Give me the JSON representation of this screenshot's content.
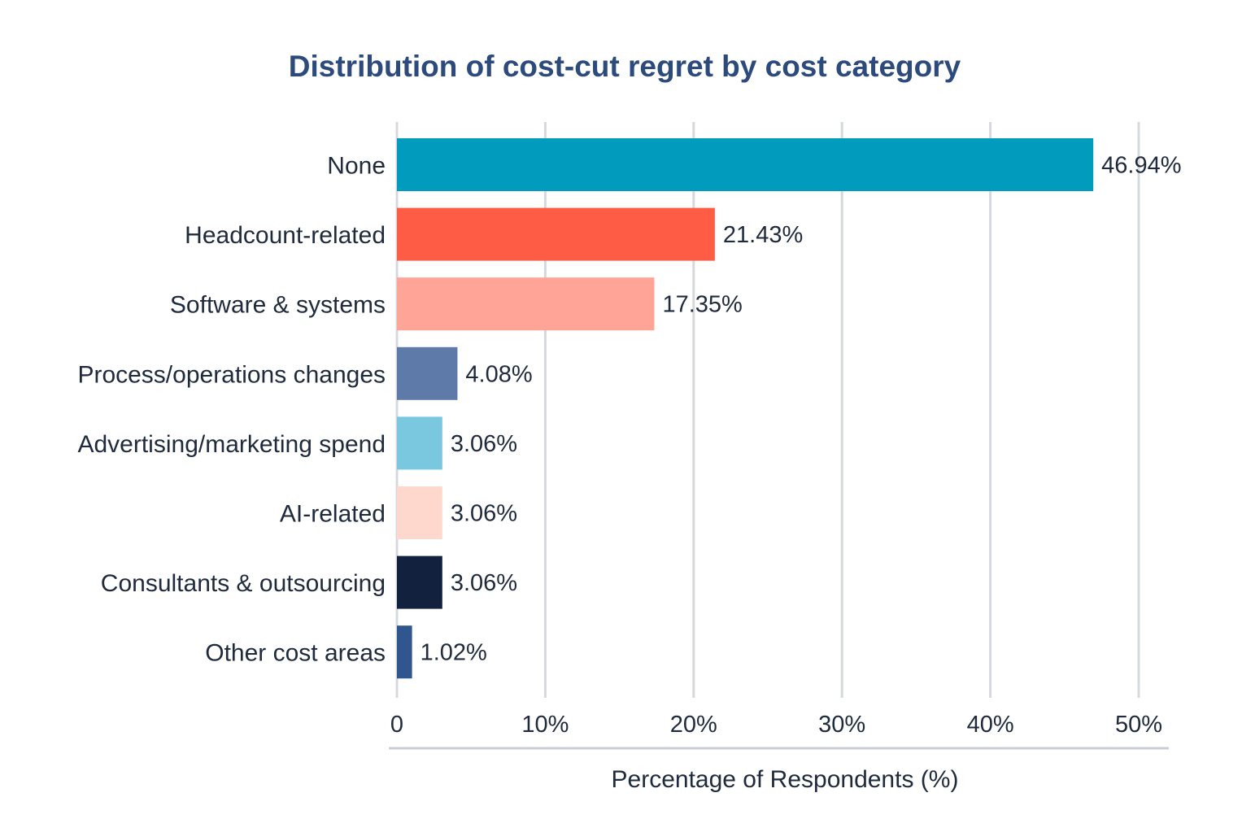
{
  "chart_data": {
    "type": "bar",
    "orientation": "horizontal",
    "title": "Distribution of cost-cut regret by cost category",
    "xlabel": "Percentage of Respondents (%)",
    "ylabel": "",
    "xlim": [
      0,
      50
    ],
    "x_ticks": [
      0,
      10,
      20,
      30,
      40,
      50
    ],
    "x_tick_labels": [
      "0",
      "10%",
      "20%",
      "30%",
      "40%",
      "50%"
    ],
    "grid": true,
    "categories": [
      "None",
      "Headcount-related",
      "Software & systems",
      "Process/operations changes",
      "Advertising/marketing spend",
      "AI-related",
      "Consultants & outsourcing",
      "Other cost areas"
    ],
    "values": [
      46.94,
      21.43,
      17.35,
      4.08,
      3.06,
      3.06,
      3.06,
      1.02
    ],
    "value_labels": [
      "46.94%",
      "21.43%",
      "17.35%",
      "4.08%",
      "3.06%",
      "3.06%",
      "3.06%",
      "1.02%"
    ],
    "colors": [
      "#009bbd",
      "#ff5c45",
      "#ffa497",
      "#5e7aa8",
      "#79c8df",
      "#ffd8cd",
      "#12213d",
      "#2f568f"
    ]
  }
}
